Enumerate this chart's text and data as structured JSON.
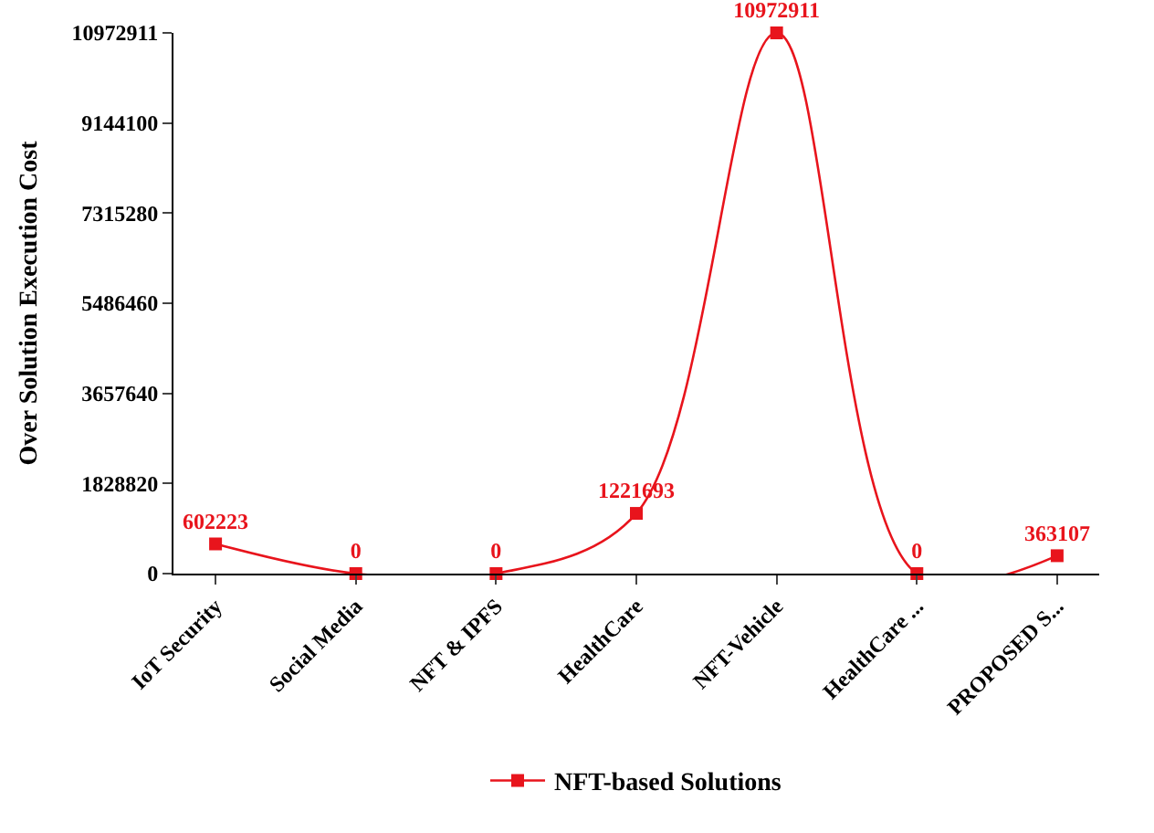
{
  "chart_data": {
    "type": "line",
    "categories": [
      "IoT Security",
      "Social Media",
      "NFT & IPFS",
      "HealthCare",
      "NFT-Vehicle",
      "HealthCare ...",
      "PROPOSED S..."
    ],
    "series": [
      {
        "name": "NFT-based Solutions",
        "color": "#e8141c",
        "values": [
          602223,
          0,
          0,
          1221693,
          10972911,
          0,
          363107
        ]
      }
    ],
    "ylabel": "Over Solution Execution Cost",
    "ylim": [
      0,
      10972911
    ],
    "yticks": [
      0,
      1828820,
      3657640,
      5486460,
      7315280,
      9144100,
      10972911
    ],
    "data_labels": true,
    "marker": "square",
    "line_style": "solid",
    "legend": "bottom"
  }
}
